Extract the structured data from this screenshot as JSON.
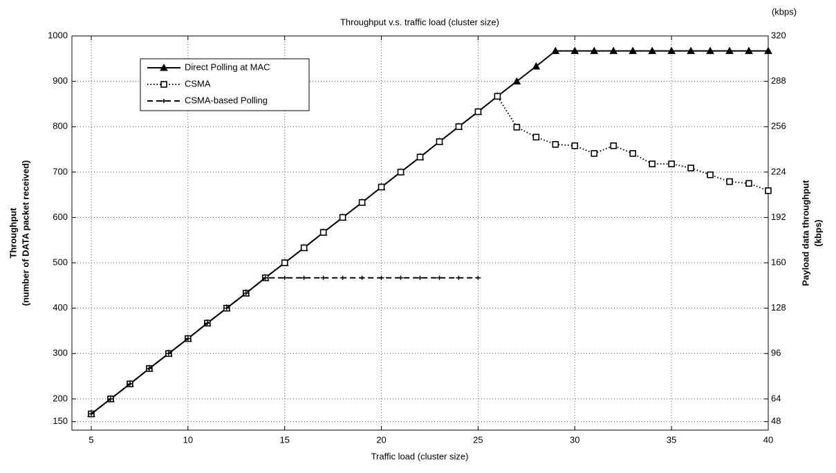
{
  "chart_data": {
    "type": "line",
    "title": "Throughput v.s. traffic load (cluster size)",
    "xlabel": "Traffic load (cluster size)",
    "ylabel": [
      "Throughput",
      "(number of DATA packet received)"
    ],
    "y2label": [
      "Payload data throughput",
      "(kbps)"
    ],
    "y2unit": "(kbps)",
    "x": [
      5,
      6,
      7,
      8,
      9,
      10,
      11,
      12,
      13,
      14,
      15,
      16,
      17,
      18,
      19,
      20,
      21,
      22,
      23,
      24,
      25,
      26,
      27,
      28,
      29,
      30,
      31,
      32,
      33,
      34,
      35,
      36,
      37,
      38,
      39,
      40
    ],
    "series": [
      {
        "name": "Direct Polling at MAC",
        "color": "#000000",
        "linestyle": "solid",
        "marker": "triangle",
        "values": [
          167,
          200,
          233,
          267,
          300,
          333,
          367,
          400,
          433,
          467,
          500,
          533,
          567,
          600,
          633,
          667,
          700,
          733,
          767,
          800,
          833,
          867,
          900,
          933,
          967,
          967,
          967,
          967,
          967,
          967,
          967,
          967,
          967,
          967,
          967,
          967
        ]
      },
      {
        "name": "CSMA",
        "color": "#000000",
        "linestyle": "dotted",
        "marker": "square",
        "values": [
          167,
          200,
          233,
          267,
          300,
          333,
          367,
          400,
          433,
          467,
          500,
          533,
          567,
          600,
          633,
          667,
          700,
          733,
          767,
          800,
          833,
          867,
          799,
          777,
          761,
          758,
          741,
          758,
          741,
          718,
          718,
          709,
          694,
          679,
          675,
          659
        ]
      },
      {
        "name": "CSMA-based Polling",
        "color": "#000000",
        "linestyle": "dashed",
        "marker": "plus",
        "values": [
          167,
          200,
          233,
          267,
          300,
          333,
          367,
          400,
          433,
          467,
          467,
          467,
          467,
          467,
          467,
          467,
          467,
          467,
          467,
          467,
          467,
          null,
          null,
          null,
          null,
          null,
          null,
          null,
          null,
          null,
          null,
          null,
          null,
          null,
          null,
          null
        ]
      }
    ],
    "xlim": [
      4,
      40
    ],
    "xticks": [
      5,
      10,
      15,
      20,
      25,
      30,
      35,
      40
    ],
    "ylim": [
      131.25,
      1000
    ],
    "yticks": [
      150,
      200,
      300,
      400,
      500,
      600,
      700,
      800,
      900,
      1000
    ],
    "y2lim": [
      42,
      320
    ],
    "y2ticks": [
      48,
      64,
      96,
      128,
      160,
      192,
      224,
      256,
      288,
      320
    ],
    "grid": true,
    "legend": "upper left"
  }
}
